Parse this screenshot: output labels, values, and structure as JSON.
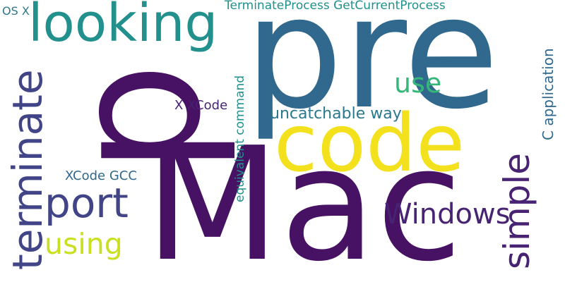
{
  "words": {
    "p": "p",
    "pre": "pre",
    "mac": "Mac",
    "code": "code",
    "looking": "looking",
    "terminate": "terminate",
    "port": "port",
    "simple": "simple",
    "windows": "Windows",
    "using": "using",
    "use": "use",
    "uncatchable_way": "uncatchable way",
    "c_application": "C application",
    "x_xcode": "X XCode",
    "xcode_gcc": "XCode GCC",
    "equivalent_command": "equivalent command",
    "terminateprocess": "TerminateProcess GetCurrentProcess",
    "os_x": "OS X"
  },
  "palette": {
    "dark_purple": "#471164",
    "indigo": "#414487",
    "blue": "#2a788e",
    "steel_blue": "#31688e",
    "teal": "#22908c",
    "green": "#35b779",
    "yellow_green": "#c9e020",
    "yellow": "#f4e11d",
    "purple": "#482373"
  }
}
